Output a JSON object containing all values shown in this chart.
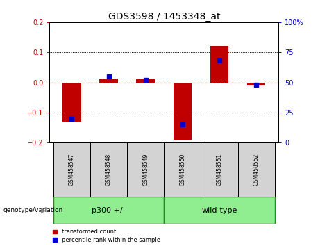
{
  "title": "GDS3598 / 1453348_at",
  "samples": [
    "GSM458547",
    "GSM458548",
    "GSM458549",
    "GSM458550",
    "GSM458551",
    "GSM458552"
  ],
  "red_bars": [
    -0.13,
    0.012,
    0.01,
    -0.19,
    0.122,
    -0.01
  ],
  "blue_squares_pct": [
    20,
    55,
    52,
    15,
    68,
    48
  ],
  "ylim": [
    -0.2,
    0.2
  ],
  "yticks": [
    -0.2,
    -0.1,
    0.0,
    0.1,
    0.2
  ],
  "right_yticks": [
    0,
    25,
    50,
    75,
    100
  ],
  "right_ytick_labels": [
    "0",
    "25",
    "50",
    "75",
    "100%"
  ],
  "hline_y": 0.0,
  "dotted_lines": [
    -0.1,
    0.1
  ],
  "group1_label": "p300 +/-",
  "group2_label": "wild-type",
  "group_label": "genotype/variation",
  "legend_red": "transformed count",
  "legend_blue": "percentile rank within the sample",
  "bar_color": "#C00000",
  "square_color": "#0000CD",
  "bar_width": 0.5,
  "background_plot": "#FFFFFF",
  "background_xlabels": "#D3D3D3",
  "group_color": "#90EE90",
  "group_edge_color": "#228B22",
  "title_fontsize": 10,
  "tick_fontsize": 7,
  "label_fontsize": 7
}
